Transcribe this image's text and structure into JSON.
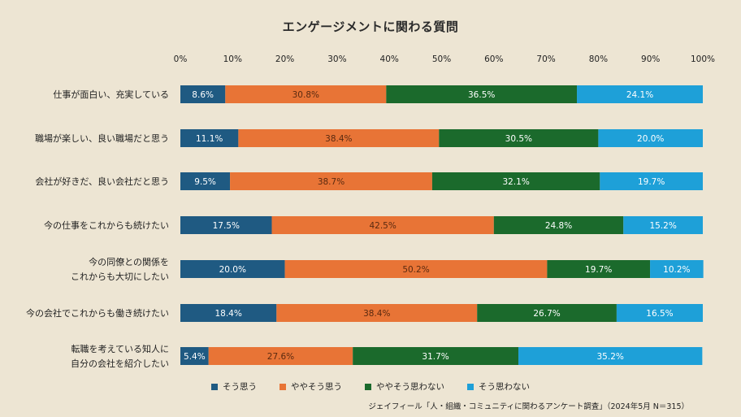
{
  "chart_data": {
    "type": "stacked-bar-horizontal",
    "title": "エンゲージメントに関わる質問",
    "xlim": [
      0,
      100
    ],
    "x_ticks": [
      "0%",
      "10%",
      "20%",
      "30%",
      "40%",
      "50%",
      "60%",
      "70%",
      "80%",
      "90%",
      "100%"
    ],
    "x_tick_values": [
      0,
      10,
      20,
      30,
      40,
      50,
      60,
      70,
      80,
      90,
      100
    ],
    "grid": false,
    "legend_position": "bottom",
    "categories": [
      [
        "仕事が面白い、充実している"
      ],
      [
        "職場が楽しい、良い職場だと思う"
      ],
      [
        "会社が好きだ、良い会社だと思う"
      ],
      [
        "今の仕事をこれからも続けたい"
      ],
      [
        "今の同僚との関係を",
        "これからも大切にしたい"
      ],
      [
        "今の会社でこれからも働き続けたい"
      ],
      [
        "転職を考えている知人に",
        "自分の会社を紹介したい"
      ]
    ],
    "series": [
      {
        "name": "そう思う",
        "color": "#1f5a82",
        "values": [
          8.6,
          11.1,
          9.5,
          17.5,
          20.0,
          18.4,
          5.4
        ],
        "labels": [
          "8.6%",
          "11.1%",
          "9.5%",
          "17.5%",
          "20.0%",
          "18.4%",
          "5.4%"
        ]
      },
      {
        "name": "ややそう思う",
        "color": "#e87436",
        "values": [
          30.8,
          38.4,
          38.7,
          42.5,
          50.2,
          38.4,
          27.6
        ],
        "labels": [
          "30.8%",
          "38.4%",
          "38.7%",
          "42.5%",
          "50.2%",
          "38.4%",
          "27.6%"
        ]
      },
      {
        "name": "ややそう思わない",
        "color": "#1b6a2c",
        "values": [
          36.5,
          30.5,
          32.1,
          24.8,
          19.7,
          26.7,
          31.7
        ],
        "labels": [
          "36.5%",
          "30.5%",
          "32.1%",
          "24.8%",
          "19.7%",
          "26.7%",
          "31.7%"
        ]
      },
      {
        "name": "そう思わない",
        "color": "#1ea0d8",
        "values": [
          24.1,
          20.0,
          19.7,
          15.2,
          10.2,
          16.5,
          35.2
        ],
        "labels": [
          "24.1%",
          "20.0%",
          "19.7%",
          "15.2%",
          "10.2%",
          "16.5%",
          "35.2%"
        ]
      }
    ]
  },
  "source": "ジェイフィール「人・組織・コミュニティに関わるアンケート調査」（2024年5月 N＝315）"
}
